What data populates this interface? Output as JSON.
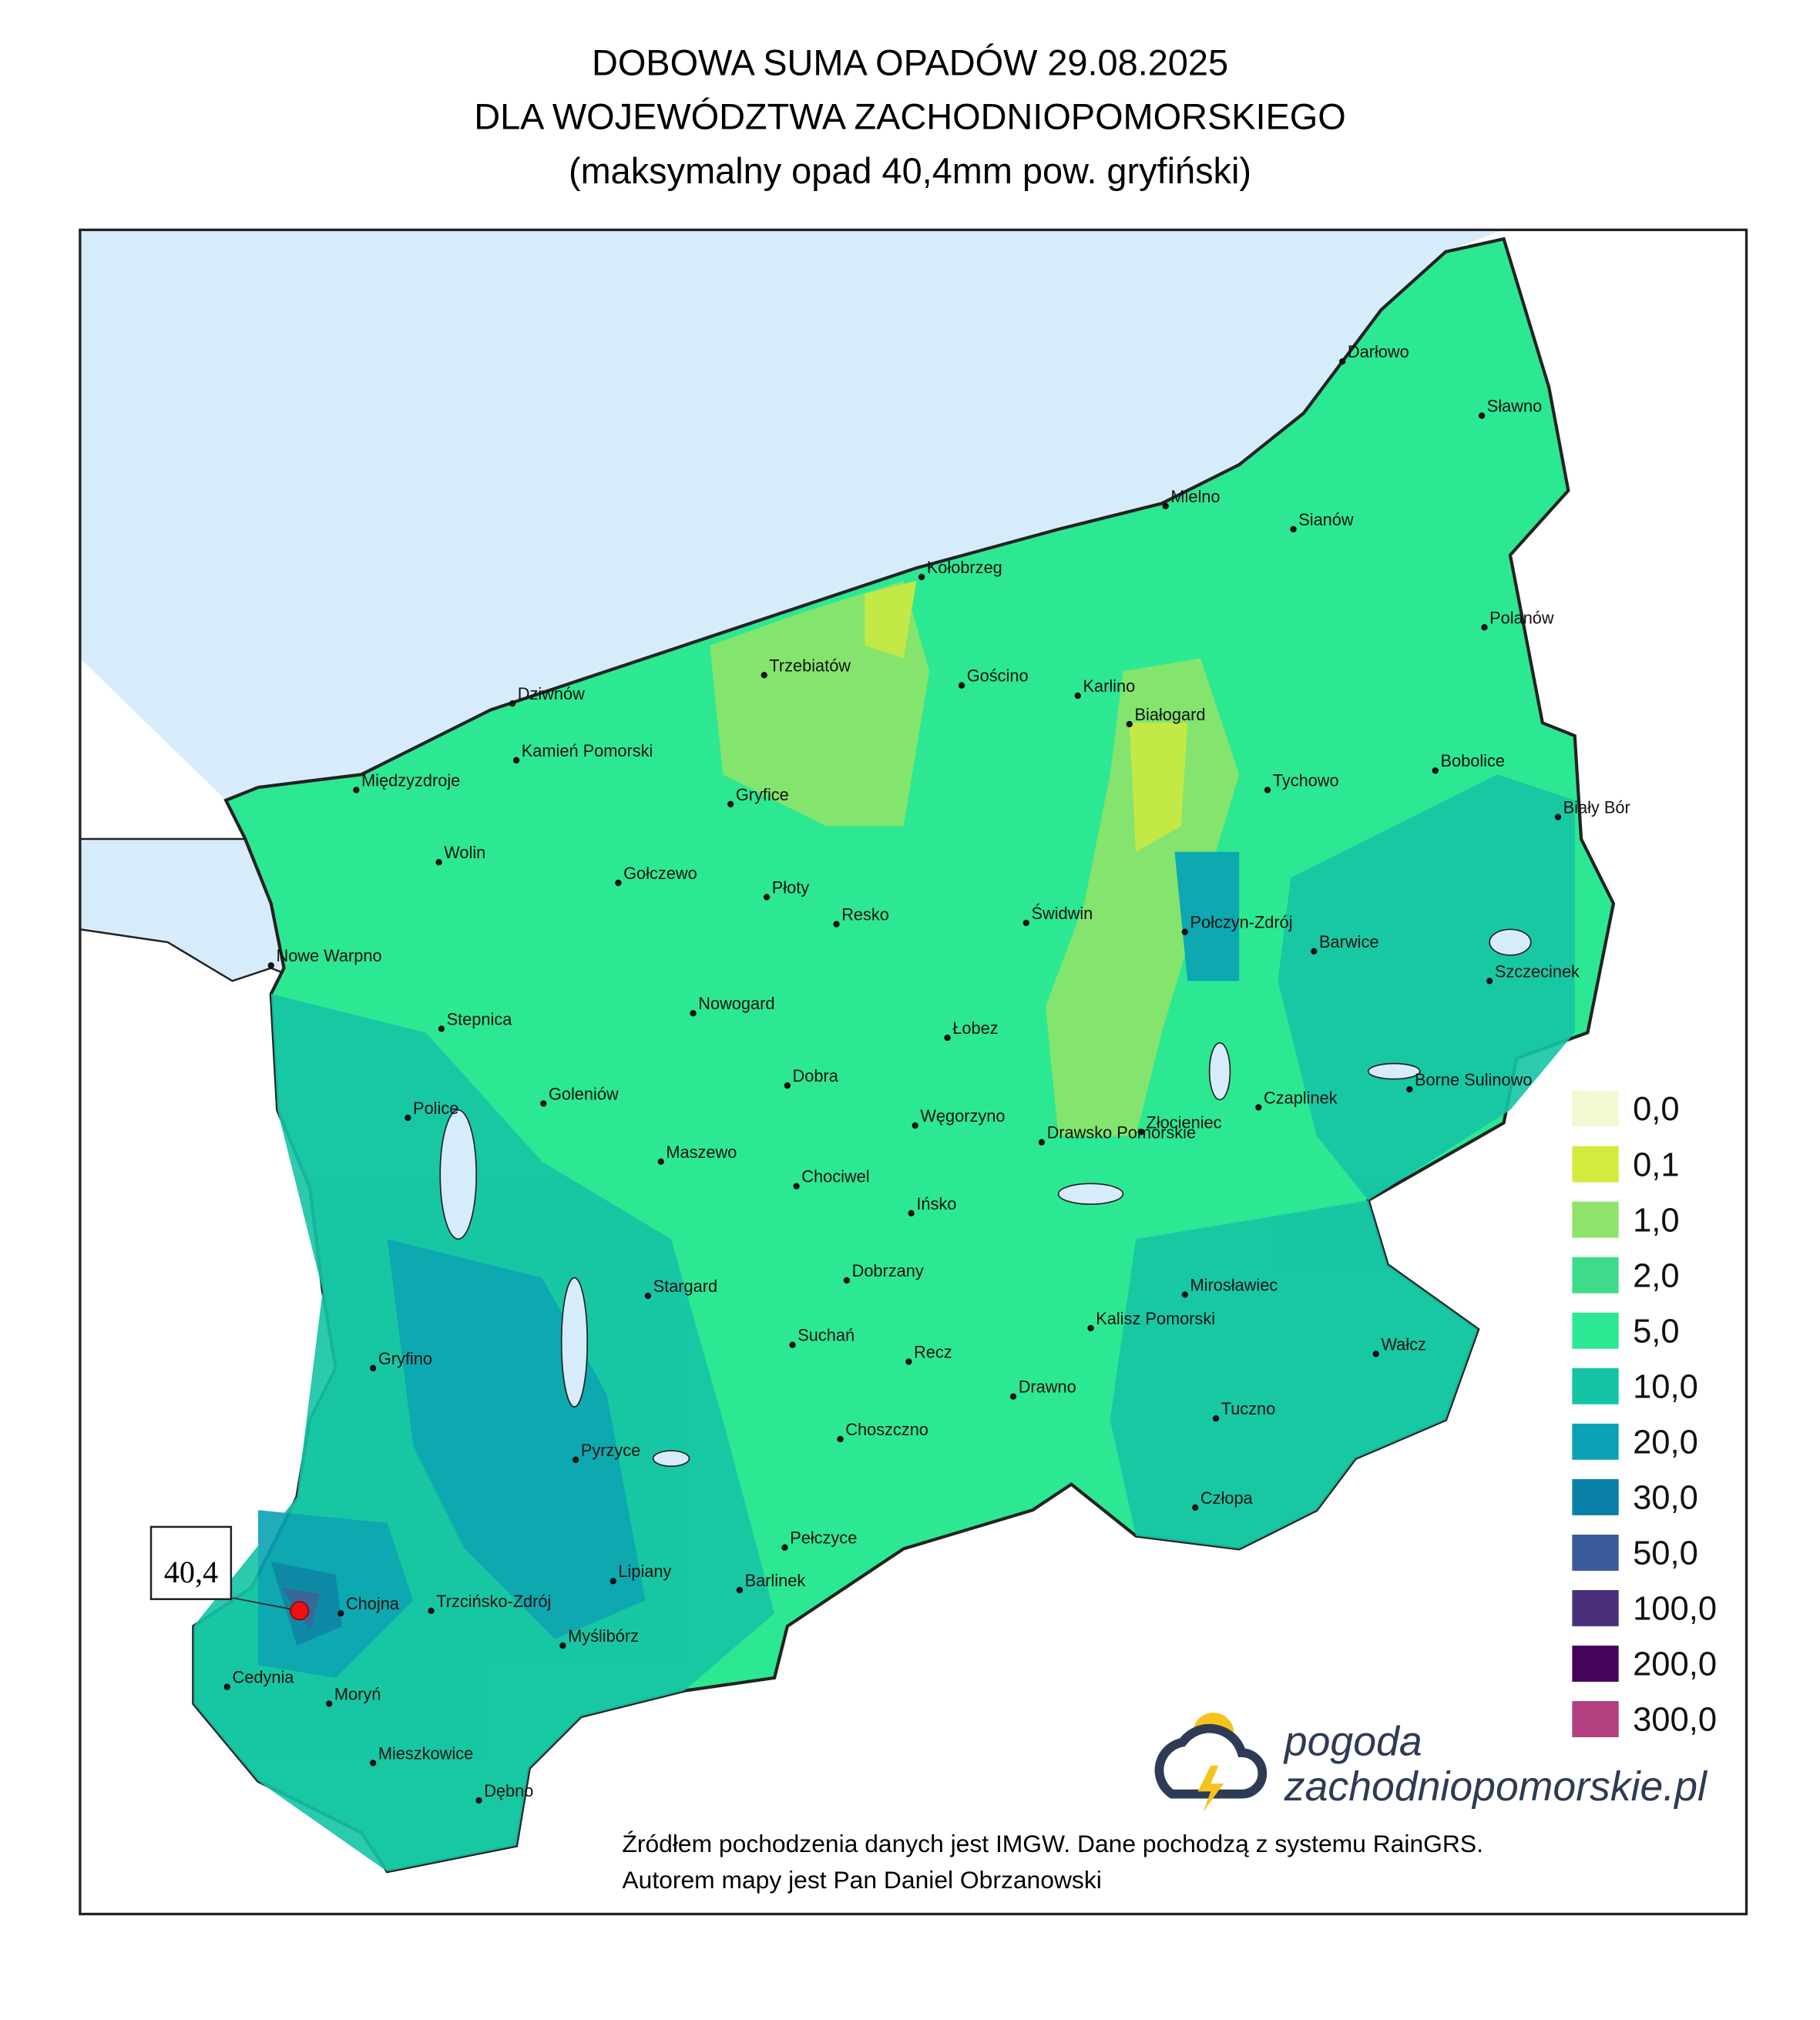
{
  "header": {
    "title": [
      "DOBOWA SUMA OPADÓW 29.08.2025",
      "DLA WOJEWÓDZTWA ZACHODNIOPOMORSKIEGO",
      "(maksymalny opad 40,4mm pow. gryfiński)"
    ]
  },
  "legend": [
    {
      "label": "0,0",
      "color": "#f0f9d2"
    },
    {
      "label": "0,1",
      "color": "#d4ea3f"
    },
    {
      "label": "1,0",
      "color": "#8ee46a"
    },
    {
      "label": "2,0",
      "color": "#3edc8a"
    },
    {
      "label": "5,0",
      "color": "#2de893"
    },
    {
      "label": "10,0",
      "color": "#15c4a5"
    },
    {
      "label": "20,0",
      "color": "#0aa2b4"
    },
    {
      "label": "30,0",
      "color": "#0a7fa8"
    },
    {
      "label": "50,0",
      "color": "#3a5a9a"
    },
    {
      "label": "100,0",
      "color": "#4a2f7a"
    },
    {
      "label": "200,0",
      "color": "#45045a"
    },
    {
      "label": "300,0",
      "color": "#b2407f"
    }
  ],
  "max_marker": {
    "label": "40,4"
  },
  "cities": [
    "Darłowo",
    "Sławno",
    "Mielno",
    "Sianów",
    "Kołobrzeg",
    "Polanów",
    "Trzebiatów",
    "Gościno",
    "Karlino",
    "Białogard",
    "Dziwnów",
    "Kamień Pomorski",
    "Bobolice",
    "Międzyzdroje",
    "Gryfice",
    "Tychowo",
    "Biały Bór",
    "Wolin",
    "Gołczewo",
    "Płoty",
    "Resko",
    "Świdwin",
    "Połczyn-Zdrój",
    "Barwice",
    "Nowe Warpno",
    "Szczecinek",
    "Stepnica",
    "Nowogard",
    "Łobez",
    "Dobra",
    "Goleniów",
    "Borne Sulinowo",
    "Police",
    "Czaplinek",
    "Węgorzyno",
    "Złocieniec",
    "Drawsko Pomorskie",
    "Maszewo",
    "Chociwel",
    "Ińsko",
    "Dobrzany",
    "Mirosławiec",
    "Stargard",
    "Kalisz Pomorski",
    "Suchań",
    "Gryfino",
    "Recz",
    "Wałcz",
    "Drawno",
    "Tuczno",
    "Choszczno",
    "Pyrzyce",
    "Człopa",
    "Pełczyce",
    "Lipiany",
    "Barlinek",
    "Chojna",
    "Trzcińsko-Zdrój",
    "Myślibórz",
    "Cedynia",
    "Moryń",
    "Mieszkowice",
    "Dębno"
  ],
  "logo": {
    "line1": "pogoda",
    "line2": "zachodniopomorskie.pl"
  },
  "footer": [
    "Źródłem pochodzenia danych jest IMGW. Dane pochodzą z systemu RainGRS.",
    "Autorem mapy jest Pan Daniel Obrzanowski"
  ]
}
